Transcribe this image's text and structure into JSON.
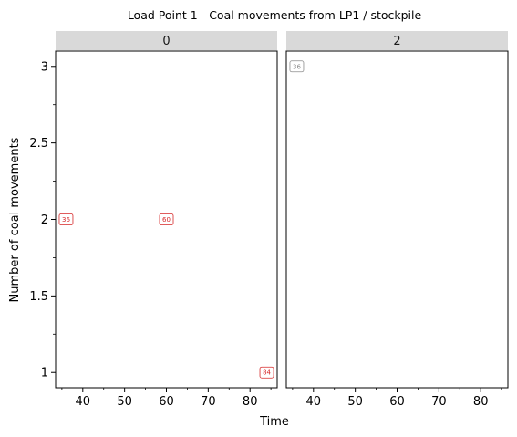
{
  "chart_data": {
    "type": "scatter",
    "title": "Load Point 1 - Coal movements from LP1 / stockpile",
    "xlabel": "Time",
    "ylabel": "Number of coal movements",
    "xlim": [
      33.5,
      86.5
    ],
    "ylim": [
      0.9,
      3.1
    ],
    "x_ticks": [
      "40",
      "50",
      "60",
      "70",
      "80"
    ],
    "y_ticks": [
      "1",
      "1.5",
      "2",
      "2.5",
      "3"
    ],
    "grid": false,
    "facets": [
      {
        "strip": "0",
        "points": [
          {
            "x": 36,
            "y": 2,
            "label": "36",
            "color": "#d62728"
          },
          {
            "x": 60,
            "y": 2,
            "label": "60",
            "color": "#d62728"
          },
          {
            "x": 84,
            "y": 1,
            "label": "84",
            "color": "#d62728"
          }
        ]
      },
      {
        "strip": "2",
        "points": [
          {
            "x": 36,
            "y": 3,
            "label": "36",
            "color": "#8c8c8c"
          }
        ]
      }
    ]
  }
}
